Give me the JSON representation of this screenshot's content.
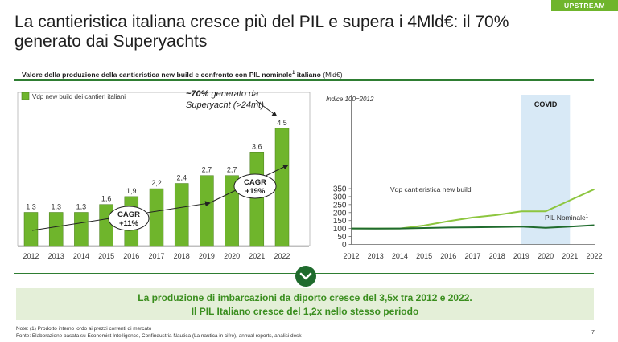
{
  "badge": "UPSTREAM",
  "title": "La cantieristica italiana cresce più del PIL e supera i 4Mld€: il 70% generato dai Superyachts",
  "subtitle": {
    "main": "Valore della produzione della cantieristica new build e confronto con PIL nominale",
    "sup": "1",
    "tail": " italiano",
    "unit": " (Mld€)"
  },
  "colors": {
    "green": "#6fb52c",
    "dark_green": "#1f6b2d",
    "covid": "#d8e9f6"
  },
  "chart_data": [
    {
      "type": "bar",
      "legend": "Vdp new build dei cantieri italiani",
      "categories": [
        "2012",
        "2013",
        "2014",
        "2015",
        "2016",
        "2017",
        "2018",
        "2019",
        "2020",
        "2021",
        "2022"
      ],
      "values": [
        1.3,
        1.3,
        1.3,
        1.6,
        1.9,
        2.2,
        2.4,
        2.7,
        2.7,
        3.6,
        4.5
      ],
      "labels": [
        "1,3",
        "1,3",
        "1,3",
        "1,6",
        "1,9",
        "2,2",
        "2,4",
        "2,7",
        "2,7",
        "3,6",
        "4,5"
      ],
      "annotations": {
        "cagr1": [
          "CAGR",
          "+11%"
        ],
        "cagr2": [
          "CAGR",
          "+19%"
        ],
        "superyacht_bold": "~70%",
        "superyacht_rest": " generato da",
        "superyacht_line2": "Superyacht (>24mt)"
      }
    },
    {
      "type": "line",
      "note": "Indice 100=2012",
      "x": [
        "2012",
        "2013",
        "2014",
        "2015",
        "2016",
        "2017",
        "2018",
        "2019",
        "2020",
        "2021",
        "2022"
      ],
      "ylim": [
        0,
        350
      ],
      "yticks": [
        0,
        50,
        100,
        150,
        200,
        250,
        300,
        350
      ],
      "covid_label": "COVID",
      "covid_range": [
        "2019",
        "2021"
      ],
      "series": [
        {
          "name": "Vdp cantieristica new build",
          "color": "#8dc63f",
          "values": [
            100,
            100,
            100,
            119,
            146,
            169,
            185,
            208,
            208,
            277,
            346
          ]
        },
        {
          "name": "PIL Nominale",
          "sup": "1",
          "color": "#1f6b2d",
          "values": [
            100,
            99,
            100,
            103,
            106,
            108,
            110,
            112,
            104,
            112,
            121
          ]
        }
      ]
    }
  ],
  "banner": {
    "line1": "La produzione di imbarcazioni da diporto cresce del 3,5x tra 2012 e 2022.",
    "line2": "Il PIL Italiano cresce del 1,2x nello stesso periodo"
  },
  "footer": {
    "note": "Note: (1) Prodotto interno lordo ai prezzi correnti di mercato",
    "source": "Fonte: Elaborazione basata su Economist Intelligence, Confindustria Nautica (La nautica in cifre), annual reports, analisi desk",
    "page": "7"
  }
}
